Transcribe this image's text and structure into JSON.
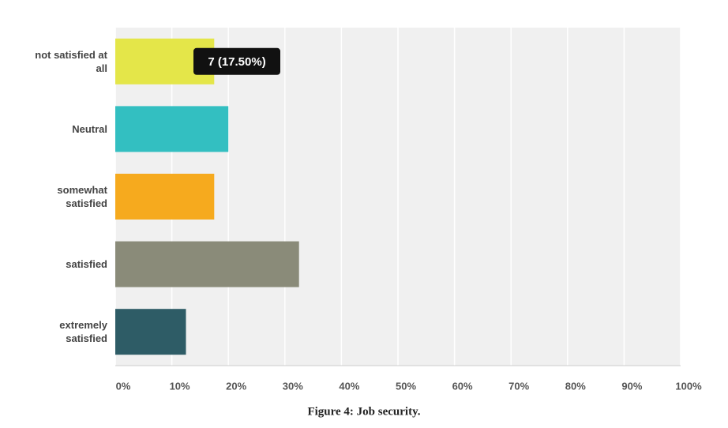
{
  "chart_data": {
    "type": "bar",
    "orientation": "horizontal",
    "caption": "Figure 4: Job security.",
    "categories": [
      "not satisfied at all",
      "Neutral",
      "somewhat satisfied",
      "satisfied",
      "extremely satisfied"
    ],
    "values": [
      17.5,
      20,
      17.5,
      32.5,
      12.5
    ],
    "colors": [
      "#e4e649",
      "#33bfc1",
      "#f6aa1e",
      "#8a8b79",
      "#2e5c66"
    ],
    "xlim": [
      0,
      100
    ],
    "xticks": [
      {
        "value": 0,
        "label": "0%"
      },
      {
        "value": 10,
        "label": "10%"
      },
      {
        "value": 20,
        "label": "20%"
      },
      {
        "value": 30,
        "label": "30%"
      },
      {
        "value": 40,
        "label": "40%"
      },
      {
        "value": 50,
        "label": "50%"
      },
      {
        "value": 60,
        "label": "60%"
      },
      {
        "value": 70,
        "label": "70%"
      },
      {
        "value": 80,
        "label": "80%"
      },
      {
        "value": 90,
        "label": "90%"
      },
      {
        "value": 100,
        "label": "100%"
      }
    ],
    "grid": true,
    "tooltip": {
      "label": "7 (17.50%)",
      "category": 0
    }
  }
}
